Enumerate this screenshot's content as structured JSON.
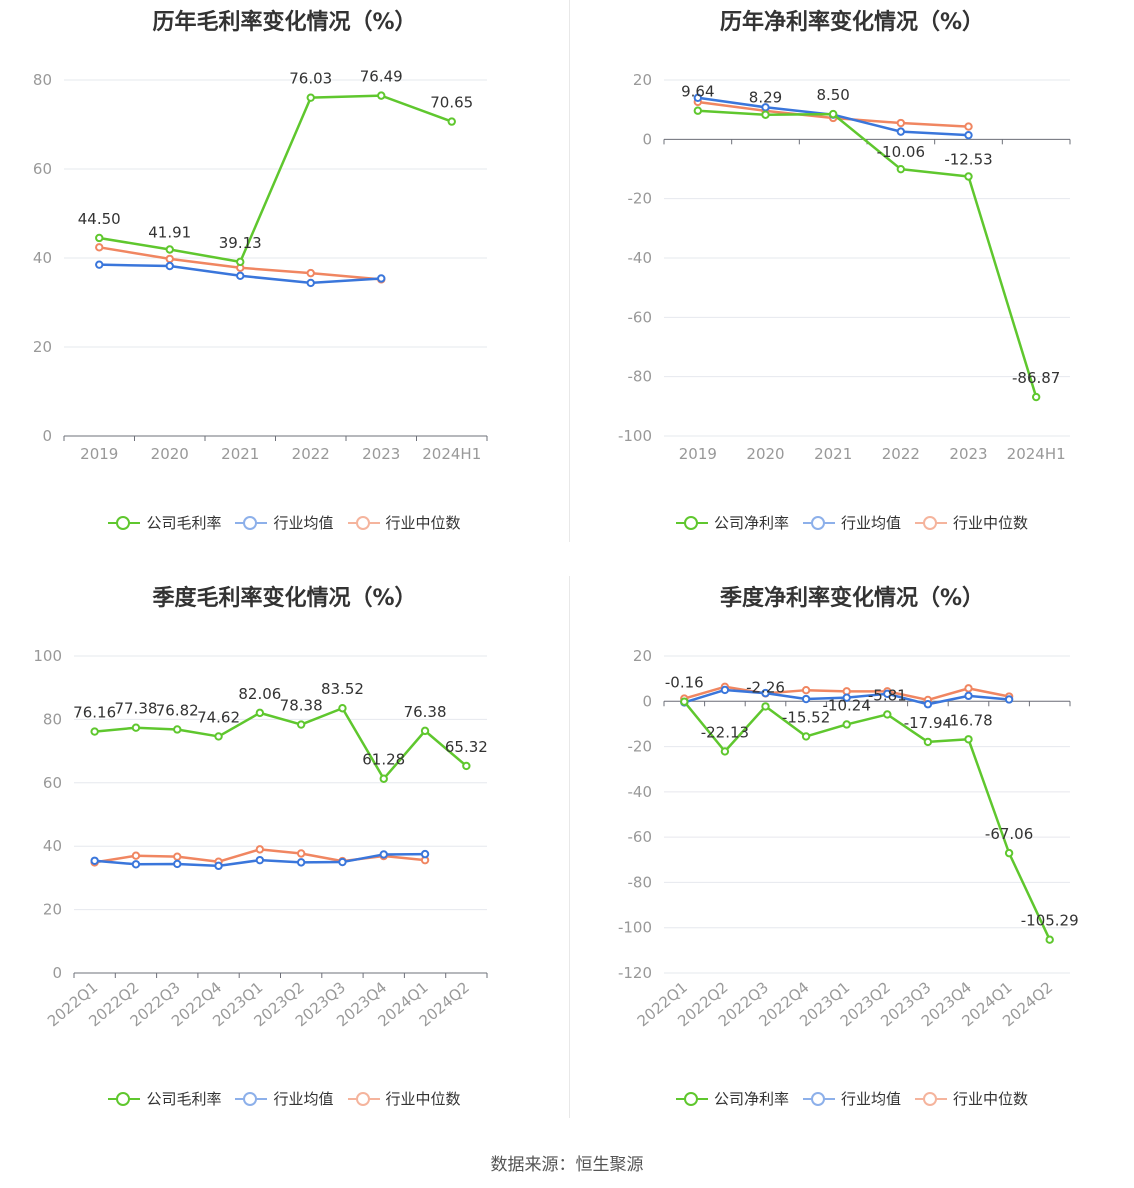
{
  "source": "数据来源：恒生聚源",
  "chart_data": [
    {
      "type": "line",
      "title": "历年毛利率变化情况（%）",
      "categories": [
        "2019",
        "2020",
        "2021",
        "2022",
        "2023",
        "2024H1"
      ],
      "ylim": [
        0,
        80
      ],
      "yticks": [
        0,
        20,
        40,
        60,
        80
      ],
      "grid": true,
      "legend_position": "bottom",
      "series": [
        {
          "name": "公司毛利率",
          "color": "#5fc72e",
          "values": [
            44.5,
            41.91,
            39.13,
            76.03,
            76.49,
            70.65
          ],
          "labels": [
            "44.50",
            "41.91",
            "39.13",
            "76.03",
            "76.49",
            "70.65"
          ]
        },
        {
          "name": "行业均值",
          "color": "#3a76db",
          "values": [
            38.5,
            38.2,
            36.0,
            34.4,
            35.4,
            null
          ]
        },
        {
          "name": "行业中位数",
          "color": "#f08661",
          "values": [
            42.4,
            39.8,
            37.8,
            36.6,
            35.2,
            null
          ]
        }
      ]
    },
    {
      "type": "line",
      "title": "历年净利率变化情况（%）",
      "categories": [
        "2019",
        "2020",
        "2021",
        "2022",
        "2023",
        "2024H1"
      ],
      "ylim": [
        -100,
        20
      ],
      "yticks": [
        -100,
        -80,
        -60,
        -40,
        -20,
        0,
        20
      ],
      "grid": true,
      "legend_position": "bottom",
      "series": [
        {
          "name": "公司净利率",
          "color": "#5fc72e",
          "values": [
            9.64,
            8.29,
            8.5,
            -10.06,
            -12.53,
            -86.87
          ],
          "labels": [
            "9.64",
            "8.29",
            "8.50",
            "-10.06",
            "-12.53",
            "-86.87"
          ]
        },
        {
          "name": "行业均值",
          "color": "#3a76db",
          "values": [
            14.0,
            10.8,
            8.3,
            2.6,
            1.4,
            null
          ]
        },
        {
          "name": "行业中位数",
          "color": "#f08661",
          "values": [
            12.6,
            9.6,
            7.2,
            5.5,
            4.3,
            null
          ]
        }
      ]
    },
    {
      "type": "line",
      "title": "季度毛利率变化情况（%）",
      "categories": [
        "2022Q1",
        "2022Q2",
        "2022Q3",
        "2022Q4",
        "2023Q1",
        "2023Q2",
        "2023Q3",
        "2023Q4",
        "2024Q1",
        "2024Q2"
      ],
      "ylim": [
        0,
        100
      ],
      "yticks": [
        0,
        20,
        40,
        60,
        80,
        100
      ],
      "grid": true,
      "legend_position": "bottom",
      "series": [
        {
          "name": "公司毛利率",
          "color": "#5fc72e",
          "values": [
            76.16,
            77.38,
            76.82,
            74.62,
            82.06,
            78.38,
            83.52,
            61.28,
            76.38,
            65.32
          ],
          "labels": [
            "76.16",
            "77.38",
            "76.82",
            "74.62",
            "82.06",
            "78.38",
            "83.52",
            "61.28",
            "76.38",
            "65.32"
          ]
        },
        {
          "name": "行业均值",
          "color": "#3a76db",
          "values": [
            35.4,
            34.3,
            34.4,
            33.8,
            35.6,
            34.9,
            35.0,
            37.4,
            37.5,
            null
          ]
        },
        {
          "name": "行业中位数",
          "color": "#f08661",
          "values": [
            34.9,
            37.0,
            36.7,
            35.1,
            39.0,
            37.7,
            35.3,
            36.9,
            35.6,
            null
          ]
        }
      ]
    },
    {
      "type": "line",
      "title": "季度净利率变化情况（%）",
      "categories": [
        "2022Q1",
        "2022Q2",
        "2022Q3",
        "2022Q4",
        "2023Q1",
        "2023Q2",
        "2023Q3",
        "2023Q4",
        "2024Q1",
        "2024Q2"
      ],
      "ylim": [
        -120,
        20
      ],
      "yticks": [
        -120,
        -100,
        -80,
        -60,
        -40,
        -20,
        0,
        20
      ],
      "grid": true,
      "legend_position": "bottom",
      "series": [
        {
          "name": "公司净利率",
          "color": "#5fc72e",
          "values": [
            -0.16,
            -22.13,
            -2.26,
            -15.52,
            -10.24,
            -5.81,
            -17.94,
            -16.78,
            -67.06,
            -105.29
          ],
          "labels": [
            "-0.16",
            "-22.13",
            "-2.26",
            "-15.52",
            "-10.24",
            "-5.81",
            "-17.94",
            "-16.78",
            "-67.06",
            "-105.29"
          ]
        },
        {
          "name": "行业均值",
          "color": "#3a76db",
          "values": [
            -0.5,
            5.0,
            3.6,
            1.0,
            1.6,
            3.3,
            -1.3,
            2.4,
            0.8,
            null
          ]
        },
        {
          "name": "行业中位数",
          "color": "#f08661",
          "values": [
            1.2,
            6.4,
            3.5,
            4.9,
            4.4,
            4.4,
            0.6,
            5.7,
            2.1,
            null
          ]
        }
      ]
    }
  ]
}
